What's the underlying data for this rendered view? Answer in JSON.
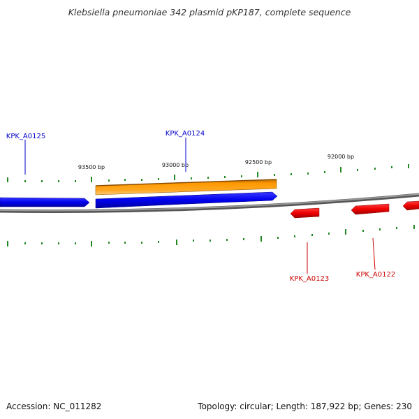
{
  "title": "Klebsiella pneumoniae 342 plasmid pKP187, complete sequence",
  "footer": {
    "accession": "Accession: NC_011282",
    "summary": "Topology: circular; Length: 187,922 bp; Genes: 230"
  },
  "scale_labels": [
    "93500 bp",
    "93000 bp",
    "92500 bp",
    "92000 bp"
  ],
  "genes": [
    {
      "name": "KPK_A0125",
      "strand": "forward",
      "color": "#0000cc"
    },
    {
      "name": "KPK_A0124",
      "strand": "forward",
      "color": "#0000cc"
    },
    {
      "name": "KPK_A0123",
      "strand": "reverse",
      "color": "#cc0000"
    },
    {
      "name": "KPK_A0122",
      "strand": "reverse",
      "color": "#cc0000"
    }
  ],
  "colors": {
    "forward_gene": "#0000ee",
    "reverse_gene": "#ee0000",
    "orf": "#ff9900",
    "backbone": "#777777",
    "tick": "#228822"
  }
}
